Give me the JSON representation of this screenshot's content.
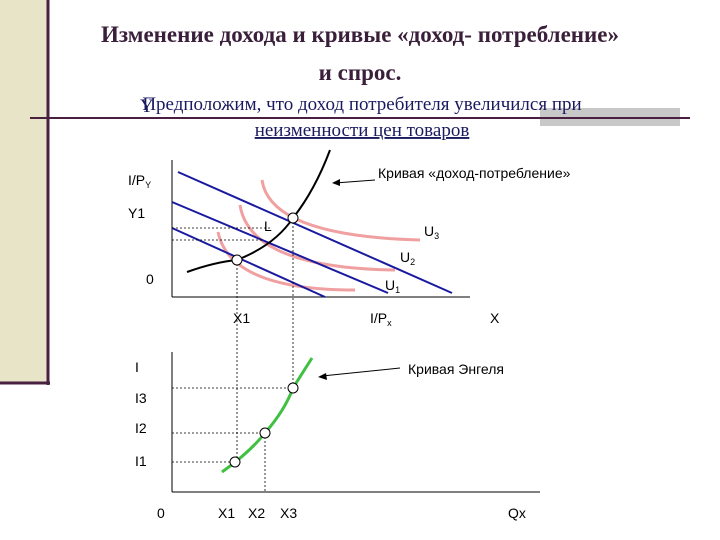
{
  "header": {
    "title_line1": "Изменение дохода и кривые «доход- потребление»",
    "title_line2": "и спрос.",
    "subtitle_line1": "Предположим, что доход потребителя увеличился при",
    "subtitle_line2": "неизменности цен товаров",
    "stray_mark": "Y"
  },
  "diagram1": {
    "y_axis_label": "I/P",
    "y_axis_label_sub": "Y",
    "y1_label": "Y1",
    "origin": "0",
    "point_label": "L",
    "u3": "U",
    "u3_sub": "3",
    "u2": "U",
    "u2_sub": "2",
    "u1": "U",
    "u1_sub": "1",
    "x1_label": "X1",
    "x_intercept_label": "I/P",
    "x_intercept_sub": "x",
    "x_axis_label": "X",
    "curve_label": "Кривая «доход-потребление»"
  },
  "diagram2": {
    "y_axis_label": "I",
    "i3": "I3",
    "i2": "I2",
    "i1": "I1",
    "origin": "0",
    "x1": "X1",
    "x2": "X2",
    "x3": "X3",
    "x_axis_label": "Qx",
    "curve_label": "Кривая Энгеля"
  }
}
